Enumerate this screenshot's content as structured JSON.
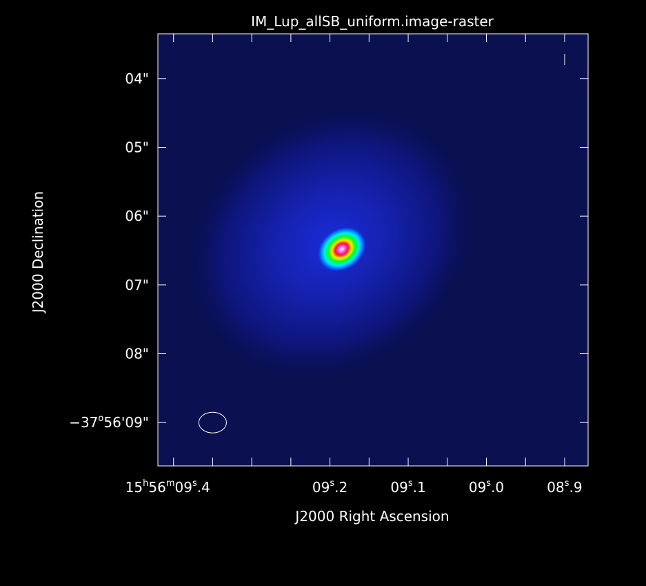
{
  "chart_data": {
    "type": "heatmap",
    "title": "IM_Lup_allSB_uniform.image-raster",
    "xlabel": "J2000 Right Ascension",
    "ylabel": "J2000 Declination",
    "colormap": "rainbow (black-blue-cyan-green-yellow-red-magenta-white)",
    "background_color": "#000000",
    "frame_color": "#ffffff",
    "x_ticks": [
      {
        "ra_s": 9.4,
        "label": "15h56m09s.4",
        "labelled": true
      },
      {
        "ra_s": 9.35,
        "label": "",
        "labelled": false
      },
      {
        "ra_s": 9.3,
        "label": "",
        "labelled": false
      },
      {
        "ra_s": 9.25,
        "label": "",
        "labelled": false
      },
      {
        "ra_s": 9.2,
        "label": "09s.2",
        "labelled": true
      },
      {
        "ra_s": 9.15,
        "label": "",
        "labelled": false
      },
      {
        "ra_s": 9.1,
        "label": "09s.1",
        "labelled": true
      },
      {
        "ra_s": 9.05,
        "label": "",
        "labelled": false
      },
      {
        "ra_s": 9.0,
        "label": "09s.0",
        "labelled": true
      },
      {
        "ra_s": 8.95,
        "label": "",
        "labelled": false
      },
      {
        "ra_s": 8.9,
        "label": "08s.9",
        "labelled": true
      }
    ],
    "y_ticks": [
      {
        "dec_arcsec": 4,
        "label": "04\"",
        "lead": ""
      },
      {
        "dec_arcsec": 5,
        "label": "05\"",
        "lead": ""
      },
      {
        "dec_arcsec": 6,
        "label": "06\"",
        "lead": ""
      },
      {
        "dec_arcsec": 7,
        "label": "07\"",
        "lead": ""
      },
      {
        "dec_arcsec": 8,
        "label": "08\"",
        "lead": ""
      },
      {
        "dec_arcsec": 9,
        "label": "09\"",
        "lead": "−37o56'"
      }
    ],
    "xlim_ra_s": [
      9.42,
      8.87
    ],
    "ylim_dec_arcsec": [
      3.35,
      9.63
    ],
    "source": {
      "ra_s": 9.185,
      "dec_arcsec": 6.48,
      "shape": "compact ellipse, tilted",
      "peak": "white/saturated"
    },
    "beam": {
      "ra_s": 9.35,
      "dec_arcsec": 9.0,
      "shape": "ellipse outline"
    },
    "grid": false,
    "legend": "none"
  }
}
